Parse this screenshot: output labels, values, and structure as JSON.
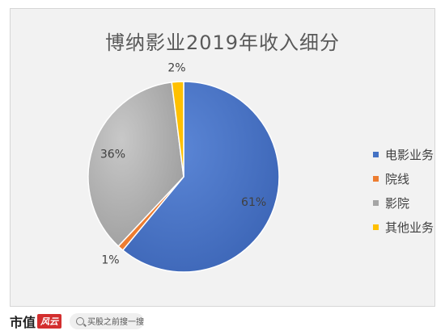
{
  "chart_data": {
    "type": "pie",
    "title": "博纳影业2019年收入细分",
    "categories": [
      "电影业务",
      "院线",
      "影院",
      "其他业务"
    ],
    "values": [
      61,
      1,
      36,
      2
    ],
    "data_labels": [
      "61%",
      "1%",
      "36%",
      "2%"
    ],
    "colors": [
      "#4472c4",
      "#ed7d31",
      "#a5a5a5",
      "#ffc000"
    ],
    "legend_position": "right"
  },
  "footer": {
    "brand": "市值",
    "brand_badge": "风云",
    "search_placeholder": "买股之前搜一搜"
  }
}
